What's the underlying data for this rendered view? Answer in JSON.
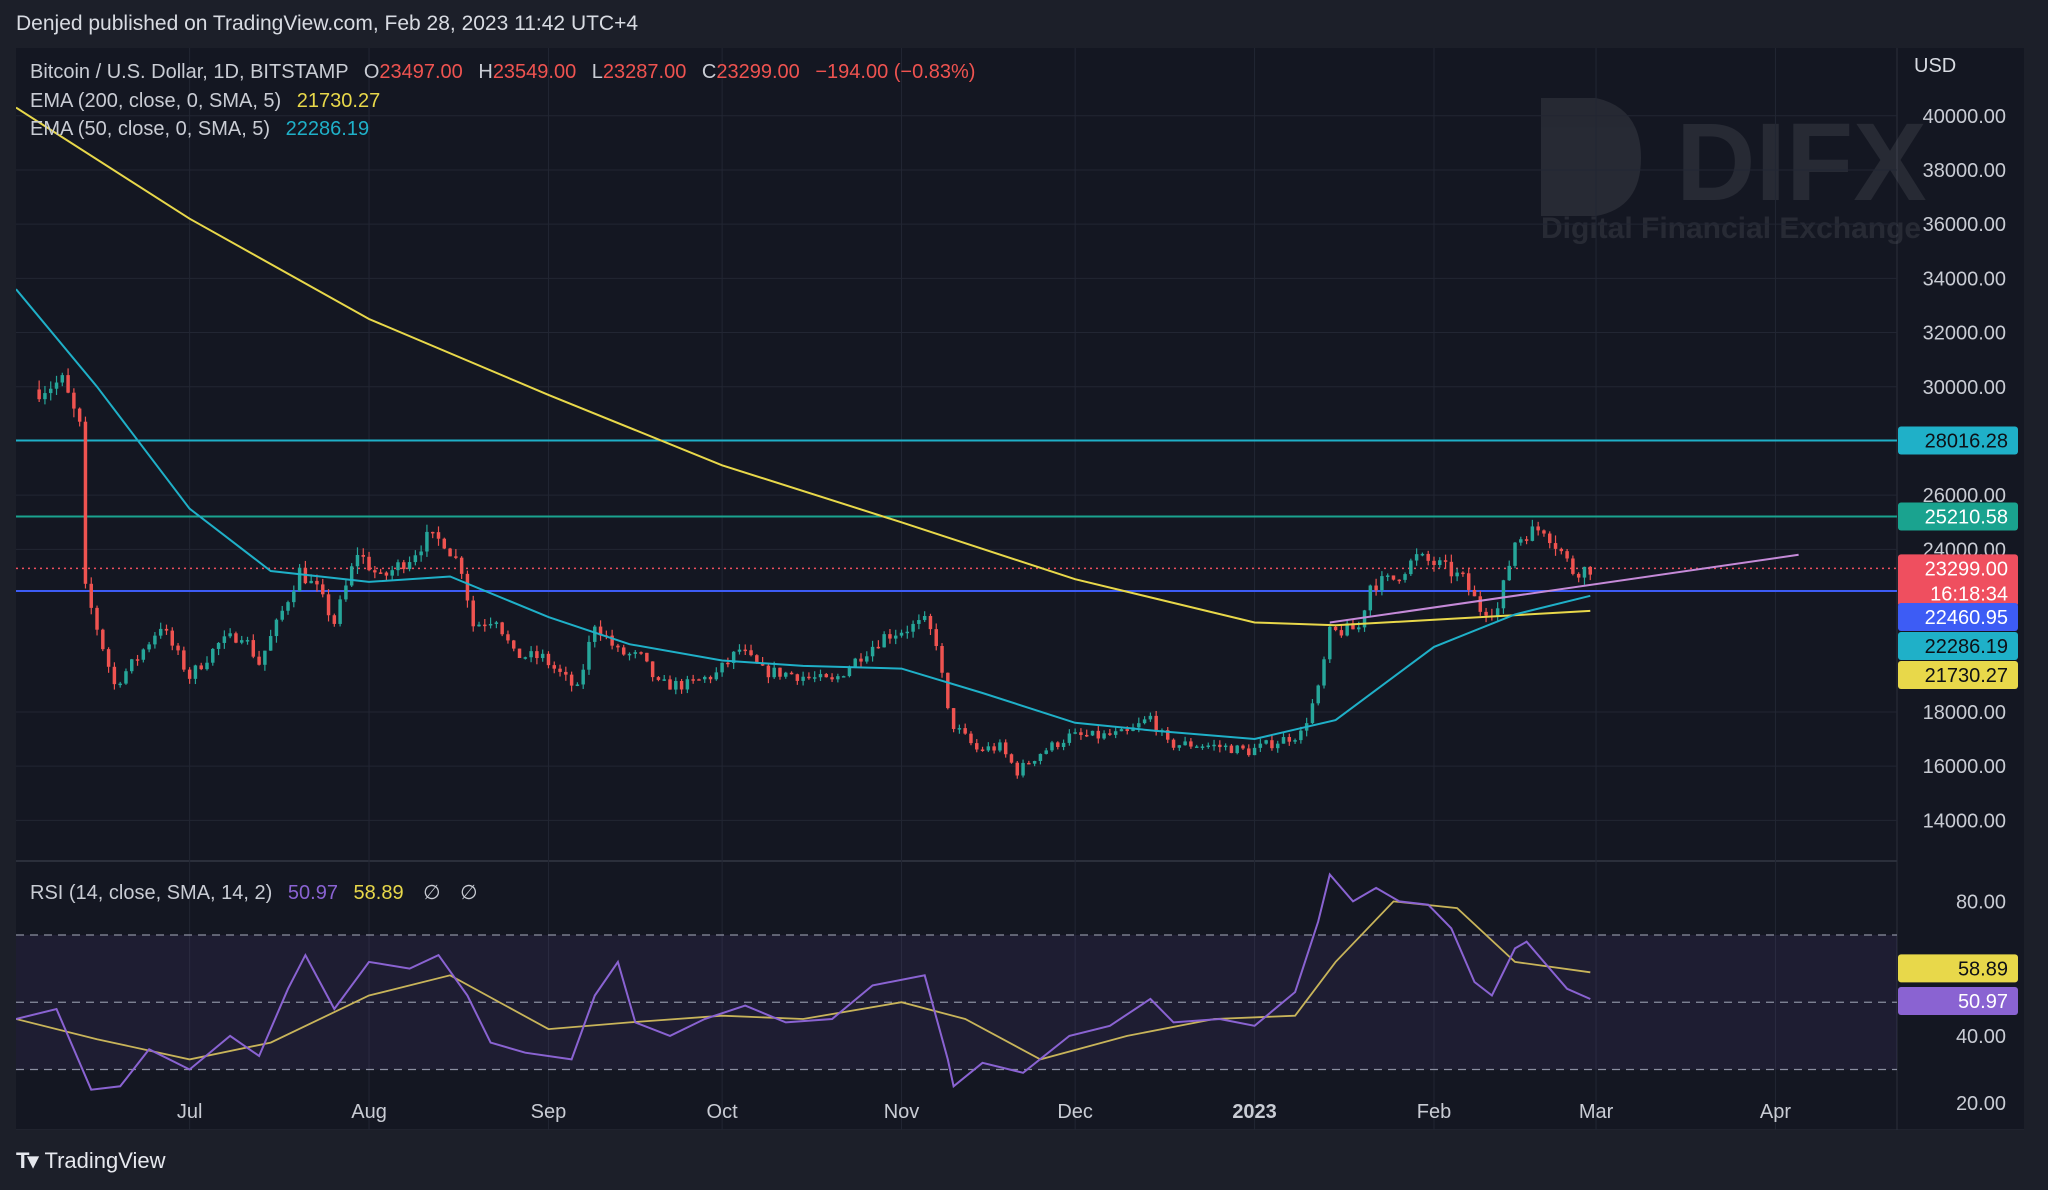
{
  "header": {
    "published": "Denjed published on TradingView.com, Feb 28, 2023 11:42 UTC+4"
  },
  "legend": {
    "symbol": "Bitcoin / U.S. Dollar, 1D, BITSTAMP",
    "o_label": "O",
    "o_value": "23497.00",
    "h_label": "H",
    "h_value": "23549.00",
    "l_label": "L",
    "l_value": "23287.00",
    "c_label": "C",
    "c_value": "23299.00",
    "change": "−194.00 (−0.83%)",
    "ema200_label": "EMA (200, close, 0, SMA, 5)",
    "ema200_value": "21730.27",
    "ema50_label": "EMA (50, close, 0, SMA, 5)",
    "ema50_value": "22286.19",
    "rsi_label": "RSI (14, close, SMA, 14, 2)",
    "rsi_value": "50.97",
    "rsi_ma_value": "58.89",
    "rsi_extra1": "∅",
    "rsi_extra2": "∅"
  },
  "watermark": {
    "brand": "DIFX",
    "tagline": "Digital Financial Exchange"
  },
  "footer": {
    "logo_text": "TradingView"
  },
  "colors": {
    "up": "#26a69a",
    "down": "#ef5350",
    "ema200": "#e8d84a",
    "ema50": "#1fb0c8",
    "rsi": "#8a63d2",
    "rsi_ma": "#c8b45a",
    "level_28016": "#1fb0c8",
    "level_25210": "#1aa38f",
    "level_22460": "#3d5cf5",
    "trendline": "#c58ad8",
    "last_price": "#ef4f5f"
  },
  "chart_data": {
    "type": "candlestick",
    "currency": "USD",
    "x_ticks": [
      "Jul",
      "Aug",
      "Sep",
      "Oct",
      "Nov",
      "Dec",
      "2023",
      "Feb",
      "Mar",
      "Apr"
    ],
    "y_ticks": [
      "14000.00",
      "16000.00",
      "18000.00",
      "24000.00",
      "26000.00",
      "30000.00",
      "32000.00",
      "34000.00",
      "36000.00",
      "38000.00",
      "40000.00"
    ],
    "ylim": [
      12500,
      42500
    ],
    "rsi_ticks": [
      "20.00",
      "40.00",
      "80.00"
    ],
    "rsi_ylim": [
      12,
      92
    ],
    "rsi_bands": [
      30,
      50,
      70
    ],
    "horizontal_levels": [
      {
        "value": 28016.28,
        "label": "28016.28",
        "color": "#1fb0c8"
      },
      {
        "value": 25210.58,
        "label": "25210.58",
        "color": "#1aa38f"
      },
      {
        "value": 22460.95,
        "label": "22460.95",
        "color": "#3d5cf5"
      }
    ],
    "last_price": {
      "value": 23299.0,
      "label": "23299.00",
      "countdown": "16:18:34"
    },
    "ema50_last": {
      "value": 22286.19,
      "label": "22286.19"
    },
    "ema200_last": {
      "value": 21730.27,
      "label": "21730.27"
    },
    "rsi_last": {
      "value": 50.97,
      "label": "50.97"
    },
    "rsi_ma_last": {
      "value": 58.89,
      "label": "58.89"
    },
    "trendline": {
      "from": [
        "2023-01-14",
        21300
      ],
      "to": [
        "2023-04-05",
        23800
      ]
    },
    "close_series": [
      [
        "2022-06-05",
        29900
      ],
      [
        "2022-06-09",
        30200
      ],
      [
        "2022-06-12",
        28500
      ],
      [
        "2022-06-13",
        22500
      ],
      [
        "2022-06-16",
        20400
      ],
      [
        "2022-06-18",
        19000
      ],
      [
        "2022-06-22",
        20000
      ],
      [
        "2022-06-26",
        21200
      ],
      [
        "2022-07-01",
        19300
      ],
      [
        "2022-07-06",
        20500
      ],
      [
        "2022-07-10",
        20900
      ],
      [
        "2022-07-13",
        19800
      ],
      [
        "2022-07-16",
        21200
      ],
      [
        "2022-07-20",
        23200
      ],
      [
        "2022-07-23",
        22500
      ],
      [
        "2022-07-26",
        21300
      ],
      [
        "2022-07-30",
        23900
      ],
      [
        "2022-08-03",
        22900
      ],
      [
        "2022-08-08",
        23700
      ],
      [
        "2022-08-11",
        24400
      ],
      [
        "2022-08-14",
        24300
      ],
      [
        "2022-08-17",
        23300
      ],
      [
        "2022-08-19",
        21200
      ],
      [
        "2022-08-23",
        21500
      ],
      [
        "2022-08-26",
        20100
      ],
      [
        "2022-08-31",
        20000
      ],
      [
        "2022-09-06",
        18800
      ],
      [
        "2022-09-09",
        21300
      ],
      [
        "2022-09-13",
        20200
      ],
      [
        "2022-09-17",
        20000
      ],
      [
        "2022-09-20",
        19000
      ],
      [
        "2022-09-25",
        19000
      ],
      [
        "2022-09-30",
        19400
      ],
      [
        "2022-10-04",
        20300
      ],
      [
        "2022-10-08",
        19500
      ],
      [
        "2022-10-13",
        19400
      ],
      [
        "2022-10-20",
        19100
      ],
      [
        "2022-10-25",
        20100
      ],
      [
        "2022-10-29",
        20800
      ],
      [
        "2022-11-05",
        21300
      ],
      [
        "2022-11-07",
        20600
      ],
      [
        "2022-11-09",
        18000
      ],
      [
        "2022-11-10",
        17500
      ],
      [
        "2022-11-14",
        16600
      ],
      [
        "2022-11-18",
        16700
      ],
      [
        "2022-11-21",
        15800
      ],
      [
        "2022-11-25",
        16500
      ],
      [
        "2022-11-30",
        17100
      ],
      [
        "2022-12-05",
        17100
      ],
      [
        "2022-12-10",
        17200
      ],
      [
        "2022-12-14",
        17800
      ],
      [
        "2022-12-17",
        16800
      ],
      [
        "2022-12-22",
        16800
      ],
      [
        "2022-12-27",
        16700
      ],
      [
        "2022-12-31",
        16550
      ],
      [
        "2023-01-04",
        16850
      ],
      [
        "2023-01-09",
        17200
      ],
      [
        "2023-01-12",
        18800
      ],
      [
        "2023-01-14",
        20900
      ],
      [
        "2023-01-19",
        21100
      ],
      [
        "2023-01-21",
        22700
      ],
      [
        "2023-01-25",
        22900
      ],
      [
        "2023-01-29",
        23700
      ],
      [
        "2023-02-02",
        23400
      ],
      [
        "2023-02-06",
        22900
      ],
      [
        "2023-02-09",
        21800
      ],
      [
        "2023-02-12",
        21800
      ],
      [
        "2023-02-15",
        24300
      ],
      [
        "2023-02-17",
        24600
      ],
      [
        "2023-02-20",
        24800
      ],
      [
        "2023-02-23",
        23900
      ],
      [
        "2023-02-25",
        23200
      ],
      [
        "2023-02-28",
        23299
      ]
    ],
    "ema200_series": [
      [
        "2022-06-01",
        40300
      ],
      [
        "2022-07-01",
        36200
      ],
      [
        "2022-08-01",
        32500
      ],
      [
        "2022-09-01",
        29700
      ],
      [
        "2022-10-01",
        27100
      ],
      [
        "2022-11-01",
        25000
      ],
      [
        "2022-12-01",
        22900
      ],
      [
        "2023-01-01",
        21300
      ],
      [
        "2023-01-15",
        21200
      ],
      [
        "2023-02-01",
        21400
      ],
      [
        "2023-02-28",
        21730
      ]
    ],
    "ema50_series": [
      [
        "2022-06-01",
        33600
      ],
      [
        "2022-06-15",
        30000
      ],
      [
        "2022-07-01",
        25500
      ],
      [
        "2022-07-15",
        23200
      ],
      [
        "2022-08-01",
        22800
      ],
      [
        "2022-08-15",
        23000
      ],
      [
        "2022-09-01",
        21500
      ],
      [
        "2022-09-15",
        20500
      ],
      [
        "2022-10-01",
        19900
      ],
      [
        "2022-10-15",
        19700
      ],
      [
        "2022-11-01",
        19600
      ],
      [
        "2022-11-15",
        18700
      ],
      [
        "2022-12-01",
        17600
      ],
      [
        "2022-12-15",
        17300
      ],
      [
        "2023-01-01",
        17000
      ],
      [
        "2023-01-15",
        17700
      ],
      [
        "2023-02-01",
        20400
      ],
      [
        "2023-02-15",
        21600
      ],
      [
        "2023-02-28",
        22286
      ]
    ],
    "rsi_series": [
      [
        "2022-06-01",
        45
      ],
      [
        "2022-06-08",
        48
      ],
      [
        "2022-06-14",
        24
      ],
      [
        "2022-06-19",
        25
      ],
      [
        "2022-06-24",
        36
      ],
      [
        "2022-07-01",
        30
      ],
      [
        "2022-07-08",
        40
      ],
      [
        "2022-07-13",
        34
      ],
      [
        "2022-07-18",
        54
      ],
      [
        "2022-07-21",
        64
      ],
      [
        "2022-07-26",
        48
      ],
      [
        "2022-08-01",
        62
      ],
      [
        "2022-08-08",
        60
      ],
      [
        "2022-08-13",
        64
      ],
      [
        "2022-08-18",
        52
      ],
      [
        "2022-08-22",
        38
      ],
      [
        "2022-08-28",
        35
      ],
      [
        "2022-09-05",
        33
      ],
      [
        "2022-09-09",
        52
      ],
      [
        "2022-09-13",
        62
      ],
      [
        "2022-09-16",
        44
      ],
      [
        "2022-09-22",
        40
      ],
      [
        "2022-09-28",
        45
      ],
      [
        "2022-10-05",
        49
      ],
      [
        "2022-10-12",
        44
      ],
      [
        "2022-10-20",
        45
      ],
      [
        "2022-10-27",
        55
      ],
      [
        "2022-11-05",
        58
      ],
      [
        "2022-11-09",
        33
      ],
      [
        "2022-11-10",
        25
      ],
      [
        "2022-11-15",
        32
      ],
      [
        "2022-11-22",
        29
      ],
      [
        "2022-11-30",
        40
      ],
      [
        "2022-12-07",
        43
      ],
      [
        "2022-12-14",
        51
      ],
      [
        "2022-12-18",
        44
      ],
      [
        "2022-12-26",
        45
      ],
      [
        "2023-01-01",
        43
      ],
      [
        "2023-01-08",
        53
      ],
      [
        "2023-01-12",
        74
      ],
      [
        "2023-01-14",
        88
      ],
      [
        "2023-01-18",
        80
      ],
      [
        "2023-01-22",
        84
      ],
      [
        "2023-01-26",
        80
      ],
      [
        "2023-01-31",
        79
      ],
      [
        "2023-02-04",
        72
      ],
      [
        "2023-02-08",
        56
      ],
      [
        "2023-02-11",
        52
      ],
      [
        "2023-02-15",
        66
      ],
      [
        "2023-02-17",
        68
      ],
      [
        "2023-02-21",
        60
      ],
      [
        "2023-02-24",
        54
      ],
      [
        "2023-02-28",
        50.97
      ]
    ],
    "rsi_ma_series": [
      [
        "2022-06-01",
        45
      ],
      [
        "2022-06-15",
        39
      ],
      [
        "2022-07-01",
        33
      ],
      [
        "2022-07-15",
        38
      ],
      [
        "2022-08-01",
        52
      ],
      [
        "2022-08-15",
        58
      ],
      [
        "2022-09-01",
        42
      ],
      [
        "2022-09-15",
        44
      ],
      [
        "2022-10-01",
        46
      ],
      [
        "2022-10-15",
        45
      ],
      [
        "2022-11-01",
        50
      ],
      [
        "2022-11-12",
        45
      ],
      [
        "2022-11-25",
        33
      ],
      [
        "2022-12-10",
        40
      ],
      [
        "2022-12-25",
        45
      ],
      [
        "2023-01-08",
        46
      ],
      [
        "2023-01-15",
        62
      ],
      [
        "2023-01-25",
        80
      ],
      [
        "2023-02-05",
        78
      ],
      [
        "2023-02-15",
        62
      ],
      [
        "2023-02-28",
        58.89
      ]
    ]
  }
}
